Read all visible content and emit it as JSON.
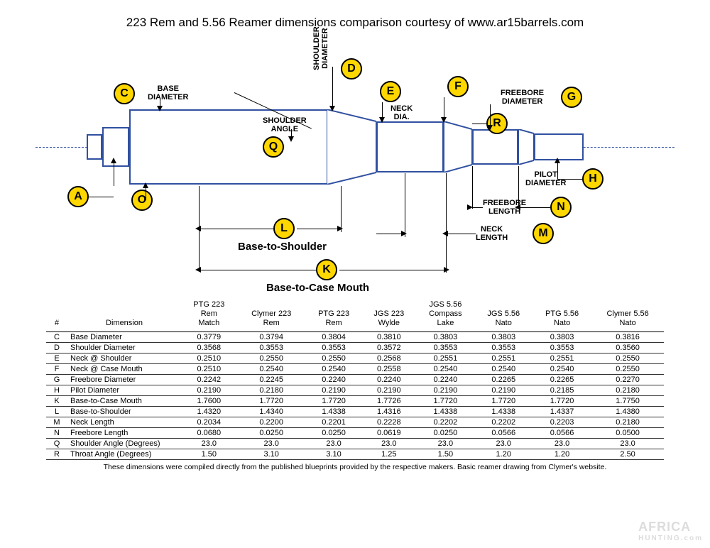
{
  "title": "223 Rem and 5.56 Reamer dimensions comparison courtesy of www.ar15barrels.com",
  "diagram": {
    "labels": {
      "A": "A",
      "C": "C",
      "D": "D",
      "E": "E",
      "F": "F",
      "G": "G",
      "H": "H",
      "K": "K",
      "L": "L",
      "M": "M",
      "N": "N",
      "O": "O",
      "Q": "Q",
      "R": "R"
    },
    "dim_text": {
      "base_diameter": "BASE\nDIAMETER",
      "shoulder_diameter": "SHOULDER\nDIAMETER",
      "shoulder_angle": "SHOULDER\nANGLE",
      "neck_dia": "NECK\nDIA.",
      "freebore_diameter": "FREEBORE\nDIAMETER",
      "pilot_diameter": "PILOT\nDIAMETER",
      "freebore_length": "FREEBORE\nLENGTH",
      "neck_length": "NECK\nLENGTH",
      "base_to_shoulder": "Base-to-Shoulder",
      "base_to_case_mouth": "Base-to-Case Mouth"
    },
    "colors": {
      "line": "#3050a0",
      "circle_fill": "#ffd700",
      "circle_border": "#000000",
      "text": "#000000",
      "background": "#ffffff"
    }
  },
  "table": {
    "columns": [
      "#",
      "Dimension",
      "PTG 223 Rem Match",
      "Clymer 223 Rem",
      "PTG 223 Rem",
      "JGS 223 Wylde",
      "JGS 5.56 Compass Lake",
      "JGS 5.56 Nato",
      "PTG 5.56 Nato",
      "Clymer 5.56 Nato"
    ],
    "rows": [
      [
        "C",
        "Base Diameter",
        "0.3779",
        "0.3794",
        "0.3804",
        "0.3810",
        "0.3803",
        "0.3803",
        "0.3803",
        "0.3816"
      ],
      [
        "D",
        "Shoulder Diameter",
        "0.3568",
        "0.3553",
        "0.3553",
        "0.3572",
        "0.3553",
        "0.3553",
        "0.3553",
        "0.3560"
      ],
      [
        "E",
        "Neck @ Shoulder",
        "0.2510",
        "0.2550",
        "0.2550",
        "0.2568",
        "0.2551",
        "0.2551",
        "0.2551",
        "0.2550"
      ],
      [
        "F",
        "Neck @ Case Mouth",
        "0.2510",
        "0.2540",
        "0.2540",
        "0.2558",
        "0.2540",
        "0.2540",
        "0.2540",
        "0.2550"
      ],
      [
        "G",
        "Freebore Diameter",
        "0.2242",
        "0.2245",
        "0.2240",
        "0.2240",
        "0.2240",
        "0.2265",
        "0.2265",
        "0.2270"
      ],
      [
        "H",
        "Pilot Diameter",
        "0.2190",
        "0.2180",
        "0.2190",
        "0.2190",
        "0.2190",
        "0.2190",
        "0.2185",
        "0.2180"
      ],
      [
        "K",
        "Base-to-Case Mouth",
        "1.7600",
        "1.7720",
        "1.7720",
        "1.7726",
        "1.7720",
        "1.7720",
        "1.7720",
        "1.7750"
      ],
      [
        "L",
        "Base-to-Shoulder",
        "1.4320",
        "1.4340",
        "1.4338",
        "1.4316",
        "1.4338",
        "1.4338",
        "1.4337",
        "1.4380"
      ],
      [
        "M",
        "Neck Length",
        "0.2034",
        "0.2200",
        "0.2201",
        "0.2228",
        "0.2202",
        "0.2202",
        "0.2203",
        "0.2180"
      ],
      [
        "N",
        "Freebore Length",
        "0.0680",
        "0.0250",
        "0.0250",
        "0.0619",
        "0.0250",
        "0.0566",
        "0.0566",
        "0.0500"
      ],
      [
        "Q",
        "Shoulder Angle (Degrees)",
        "23.0",
        "23.0",
        "23.0",
        "23.0",
        "23.0",
        "23.0",
        "23.0",
        "23.0"
      ],
      [
        "R",
        "Throat Angle (Degrees)",
        "1.50",
        "3.10",
        "3.10",
        "1.25",
        "1.50",
        "1.20",
        "1.20",
        "2.50"
      ]
    ],
    "header_bg": "#ffffff",
    "row_border": "#333333",
    "font_size": 11
  },
  "footnote": "These dimensions were compiled directly from the published blueprints provided by the respective makers.  Basic reamer drawing from Clymer's website.",
  "watermark": {
    "line1": "AFRICA",
    "line2": "HUNTING.com"
  }
}
